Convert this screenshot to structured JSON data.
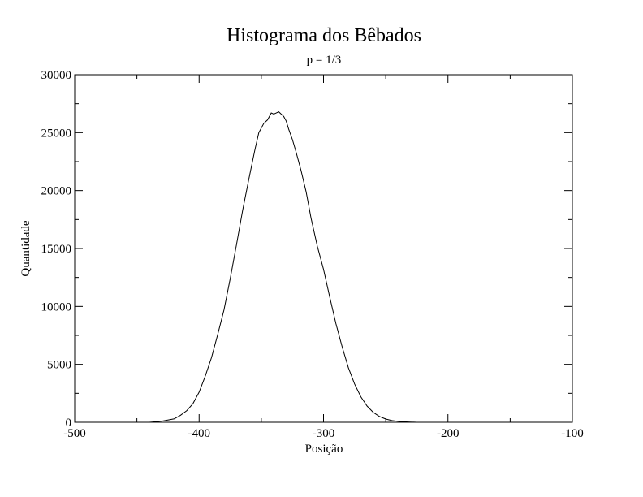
{
  "chart_data": {
    "type": "line",
    "title": "Histograma dos Bêbados",
    "subtitle": "p = 1/3",
    "xlabel": "Posição",
    "ylabel": "Quantidade",
    "xlim": [
      -500,
      -100
    ],
    "ylim": [
      0,
      30000
    ],
    "grid": false,
    "x_ticks": [
      -500,
      -400,
      -300,
      -200,
      -100
    ],
    "x_tick_labels": [
      "-500",
      "-400",
      "-300",
      "-200",
      "-100"
    ],
    "y_ticks": [
      0,
      5000,
      10000,
      15000,
      20000,
      25000,
      30000
    ],
    "y_tick_labels": [
      "0",
      "5000",
      "10000",
      "15000",
      "20000",
      "25000",
      "30000"
    ],
    "colors": {
      "line": "#000000",
      "background": "#ffffff"
    },
    "series": [
      {
        "x": [
          -440,
          -430,
          -420,
          -415,
          -410,
          -405,
          -400,
          -395,
          -390,
          -385,
          -380,
          -375,
          -370,
          -365,
          -360,
          -355,
          -352,
          -348,
          -345,
          -342,
          -340,
          -338,
          -336,
          -334,
          -332,
          -330,
          -328,
          -325,
          -322,
          -318,
          -314,
          -310,
          -305,
          -300,
          -295,
          -290,
          -285,
          -280,
          -275,
          -270,
          -265,
          -260,
          -255,
          -250,
          -245,
          -240,
          -235,
          -230,
          -225
        ],
        "values": [
          0,
          100,
          300,
          600,
          1000,
          1600,
          2600,
          4000,
          5600,
          7600,
          9700,
          12400,
          15300,
          18300,
          21000,
          23600,
          25000,
          25800,
          26100,
          26700,
          26600,
          26700,
          26800,
          26600,
          26400,
          26000,
          25300,
          24400,
          23300,
          21700,
          19900,
          17600,
          15200,
          13200,
          10800,
          8500,
          6500,
          4700,
          3300,
          2200,
          1400,
          850,
          500,
          280,
          150,
          80,
          40,
          20,
          0
        ]
      }
    ]
  }
}
